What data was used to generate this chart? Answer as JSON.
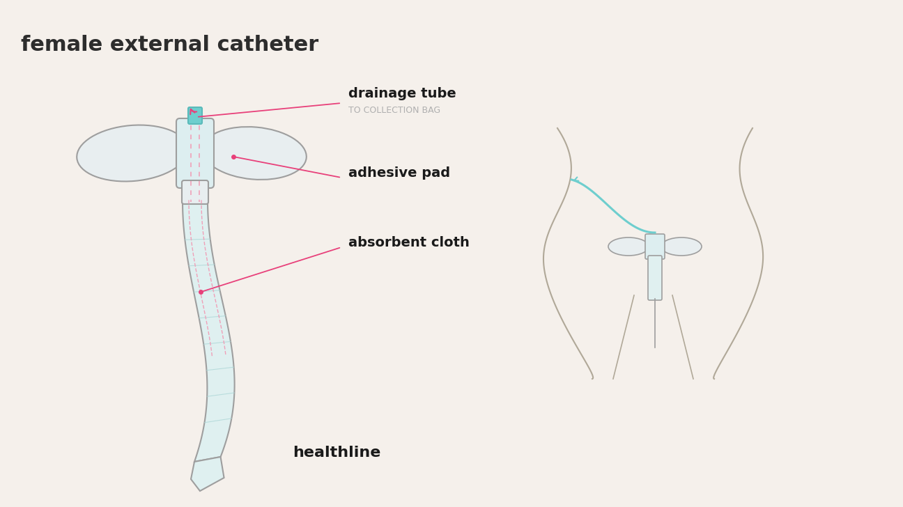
{
  "bg_color": "#f5f0eb",
  "title": "female external catheter",
  "title_color": "#2d2d2d",
  "title_fontsize": 22,
  "title_fontweight": "bold",
  "label_drainage_tube": "drainage tube",
  "label_drainage_sub": "TO COLLECTION BAG",
  "label_adhesive_pad": "adhesive pad",
  "label_absorbent_cloth": "absorbent cloth",
  "label_color": "#1a1a1a",
  "label_sub_color": "#b0b0b0",
  "label_fontsize": 14,
  "label_sub_fontsize": 9,
  "arrow_color": "#e8407a",
  "catheter_outline_color": "#9e9e9e",
  "catheter_fill_light": "#dff0f0",
  "catheter_fill_mid": "#c8e8e8",
  "tube_color": "#6ecece",
  "dashed_line_color": "#f0a0b8",
  "body_outline_color": "#b0a898",
  "healthline_color": "#1a1a1a",
  "healthline_fontsize": 16
}
